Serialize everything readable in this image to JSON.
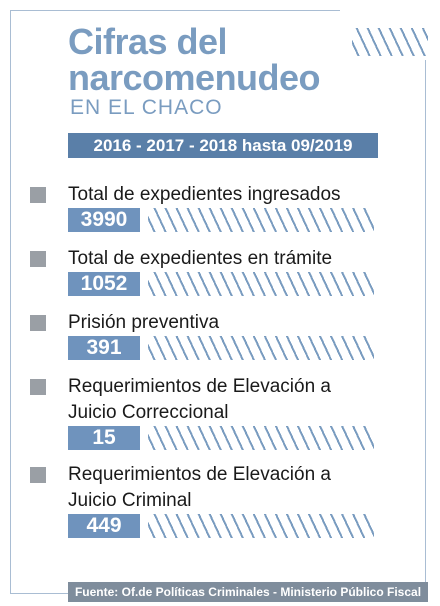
{
  "header": {
    "title_line1": "Cifras del",
    "title_line2": "narcomenudeo",
    "subtitle": "EN EL CHACO",
    "period": "2016 - 2017 - 2018 hasta 09/2019"
  },
  "items": [
    {
      "label": [
        "Total de expedientes ingresados"
      ],
      "value": 3990
    },
    {
      "label": [
        "Total de expedientes en trámite"
      ],
      "value": 1052
    },
    {
      "label": [
        "Prisión preventiva"
      ],
      "value": 391
    },
    {
      "label": [
        "Requerimientos de Elevación a",
        "Juicio Correccional"
      ],
      "value": 15
    },
    {
      "label": [
        "Requerimientos de Elevación a",
        "Juicio Criminal"
      ],
      "value": 449
    }
  ],
  "source": "Fuente: Of.de Políticas Criminales - Ministerio Público Fiscal"
}
